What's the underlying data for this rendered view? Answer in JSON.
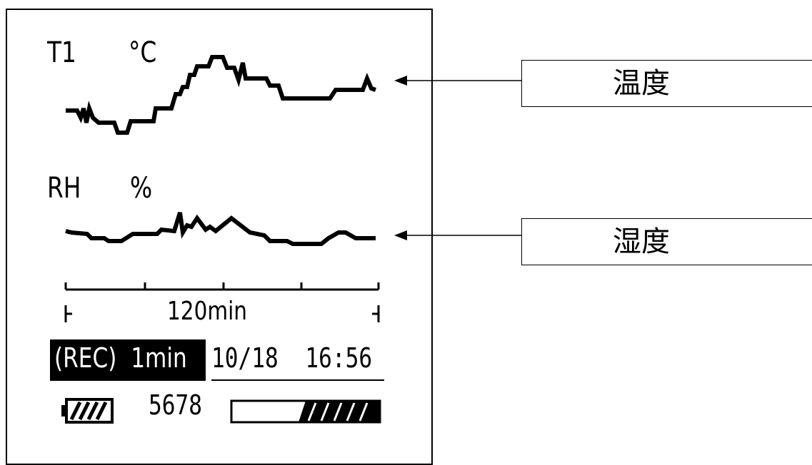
{
  "display": {
    "temp_channel": "T1",
    "temp_unit": "°C",
    "hum_channel": "RH",
    "hum_unit": "%",
    "time_span": "120min",
    "rec_status": "(REC)  1min",
    "datetime": "10/18  16:56",
    "data_count": "5678",
    "battery_icon": "battery-icon",
    "memory_icon": "memory-bar-icon"
  },
  "callouts": {
    "temperature": "温度",
    "humidity": "湿度"
  },
  "colors": {
    "foreground": "#000000",
    "background": "#ffffff"
  }
}
